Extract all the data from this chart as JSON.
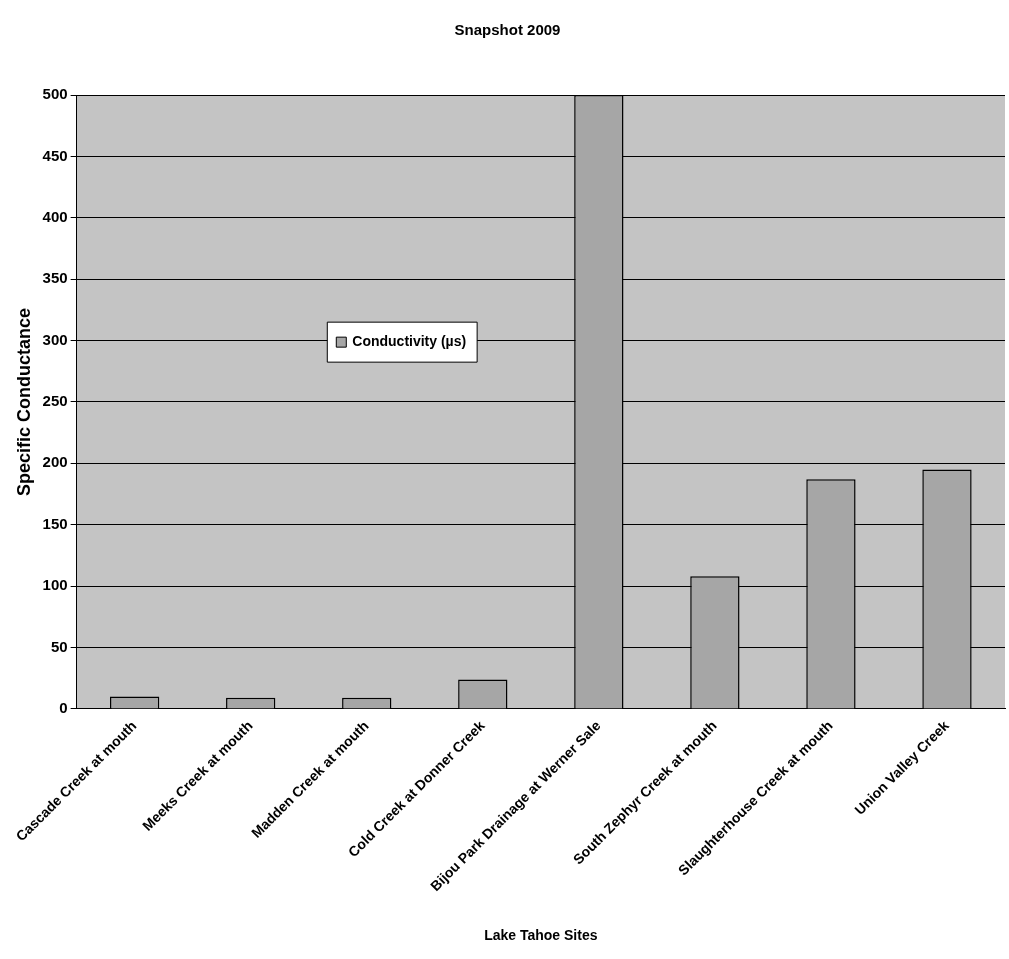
{
  "chart_data": {
    "type": "bar",
    "title": "Snapshot 2009",
    "xlabel": "Lake Tahoe Sites",
    "ylabel": "Specific Conductance",
    "categories": [
      "Cascade Creek at mouth",
      "Meeks Creek at mouth",
      "Madden Creek at mouth",
      "Cold Creek at Donner Creek",
      "Bijou Park Drainage at Werner Sale",
      "South Zephyr Creek at mouth",
      "Slaughterhouse Creek at mouth",
      "Union Valley Creek"
    ],
    "series": [
      {
        "name": "Conductivity (µs)",
        "color": "#a6a6a6",
        "values": [
          10,
          9,
          9,
          24,
          500,
          108,
          187,
          195
        ]
      }
    ],
    "ylim": [
      0,
      500
    ],
    "yticks": [
      0,
      50,
      100,
      150,
      200,
      250,
      300,
      350,
      400,
      450,
      500
    ],
    "grid": "y",
    "legend": "center"
  }
}
